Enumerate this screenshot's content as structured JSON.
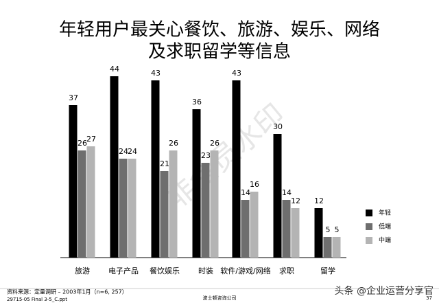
{
  "chart_data": {
    "type": "bar",
    "title": [
      "年轻用户最关心餐饮、旅游、娱乐、网络",
      "及求职留学等信息"
    ],
    "categories": [
      "旅游",
      "电子产品",
      "餐饮娱乐",
      "时装",
      "软件/游戏/网络",
      "求职",
      "留学"
    ],
    "series": [
      {
        "name": "年轻",
        "color": "#000000",
        "values": [
          37,
          44,
          43,
          36,
          43,
          30,
          12
        ]
      },
      {
        "name": "低端",
        "color": "#6e6e6e",
        "values": [
          26,
          24,
          21,
          23,
          14,
          14,
          5
        ]
      },
      {
        "name": "中端",
        "color": "#b4b4b4",
        "values": [
          27,
          24,
          26,
          26,
          16,
          12,
          5
        ]
      }
    ],
    "legend": "right",
    "source": "资料来源：定量调研 – 2003年1月（n=6, 257）",
    "file": "29715-05 Final 3-5_C.ppt",
    "company": "波士顿咨询公司",
    "page": "37",
    "watermark": "头条 @企业运营分享官",
    "diagonal_watermark": "非会员水印"
  }
}
